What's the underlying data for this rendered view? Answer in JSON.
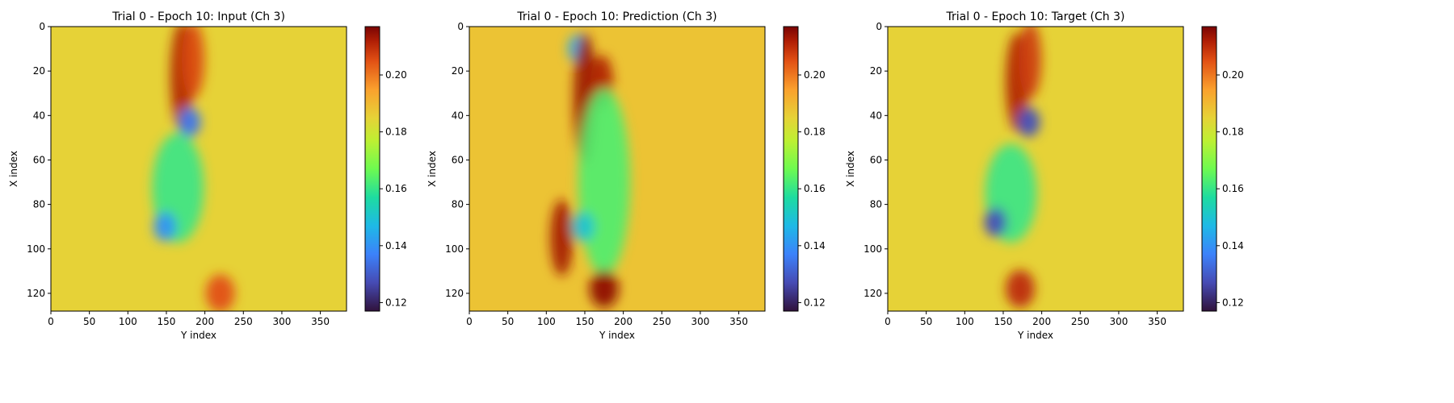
{
  "chart_data": [
    {
      "type": "heatmap",
      "title": "Trial 0 - Epoch 10: Input (Ch 3)",
      "xlabel": "Y index",
      "ylabel": "X index",
      "x_ticks": [
        0,
        50,
        100,
        150,
        200,
        250,
        300,
        350
      ],
      "y_ticks": [
        0,
        20,
        40,
        60,
        80,
        100,
        120
      ],
      "xlim": [
        0,
        384
      ],
      "ylim": [
        128,
        0
      ],
      "colormap": "turbo",
      "colorbar": {
        "range": [
          0.117,
          0.217
        ],
        "ticks": [
          "0.12",
          "0.14",
          "0.16",
          "0.18",
          "0.20"
        ]
      },
      "background_value": 0.185,
      "features": [
        {
          "kind": "warm-streak",
          "y_index": 170,
          "x_index_range": [
            0,
            45
          ],
          "value": 0.212
        },
        {
          "kind": "warm-streak",
          "y_index": 185,
          "x_index_range": [
            0,
            30
          ],
          "value": 0.206
        },
        {
          "kind": "warm-blob",
          "y_index": 220,
          "x_index": 120,
          "value": 0.205
        },
        {
          "kind": "cool-blob",
          "y_index": 180,
          "x_index": 43,
          "value": 0.135
        },
        {
          "kind": "cool-region",
          "y_index": 165,
          "x_index_range": [
            50,
            95
          ],
          "value": 0.16
        },
        {
          "kind": "cool-blob",
          "y_index": 148,
          "x_index": 90,
          "value": 0.14
        }
      ]
    },
    {
      "type": "heatmap",
      "title": "Trial 0 - Epoch 10: Prediction (Ch 3)",
      "xlabel": "Y index",
      "ylabel": "X index",
      "x_ticks": [
        0,
        50,
        100,
        150,
        200,
        250,
        300,
        350
      ],
      "y_ticks": [
        0,
        20,
        40,
        60,
        80,
        100,
        120
      ],
      "xlim": [
        0,
        384
      ],
      "ylim": [
        128,
        0
      ],
      "colormap": "turbo",
      "colorbar": {
        "range": [
          0.117,
          0.217
        ],
        "ticks": [
          "0.12",
          "0.14",
          "0.16",
          "0.18",
          "0.20"
        ]
      },
      "background_value": 0.188,
      "features": [
        {
          "kind": "cool-blob",
          "y_index": 143,
          "x_index": 10,
          "value": 0.145
        },
        {
          "kind": "warm-streak",
          "y_index": 150,
          "x_index_range": [
            5,
            60
          ],
          "value": 0.214
        },
        {
          "kind": "warm-streak",
          "y_index": 172,
          "x_index_range": [
            15,
            35
          ],
          "value": 0.212
        },
        {
          "kind": "cool-region",
          "y_index": 175,
          "x_index_range": [
            30,
            110
          ],
          "value": 0.163
        },
        {
          "kind": "cool-blob",
          "y_index": 148,
          "x_index": 90,
          "value": 0.15
        },
        {
          "kind": "warm-streak",
          "y_index": 120,
          "x_index_range": [
            80,
            110
          ],
          "value": 0.213
        },
        {
          "kind": "warm-blob",
          "y_index": 175,
          "x_index": 118,
          "value": 0.215
        }
      ]
    },
    {
      "type": "heatmap",
      "title": "Trial 0 - Epoch 10: Target (Ch 3)",
      "xlabel": "Y index",
      "ylabel": "X index",
      "x_ticks": [
        0,
        50,
        100,
        150,
        200,
        250,
        300,
        350
      ],
      "y_ticks": [
        0,
        20,
        40,
        60,
        80,
        100,
        120
      ],
      "xlim": [
        0,
        384
      ],
      "ylim": [
        128,
        0
      ],
      "colormap": "turbo",
      "colorbar": {
        "range": [
          0.117,
          0.217
        ],
        "ticks": [
          "0.12",
          "0.14",
          "0.16",
          "0.18",
          "0.20"
        ]
      },
      "background_value": 0.185,
      "features": [
        {
          "kind": "warm-streak",
          "y_index": 168,
          "x_index_range": [
            5,
            45
          ],
          "value": 0.212
        },
        {
          "kind": "warm-streak",
          "y_index": 185,
          "x_index_range": [
            0,
            30
          ],
          "value": 0.208
        },
        {
          "kind": "warm-blob",
          "y_index": 172,
          "x_index": 118,
          "value": 0.21
        },
        {
          "kind": "cool-blob",
          "y_index": 183,
          "x_index": 43,
          "value": 0.128
        },
        {
          "kind": "cool-region",
          "y_index": 160,
          "x_index_range": [
            55,
            95
          ],
          "value": 0.16
        },
        {
          "kind": "cool-blob",
          "y_index": 140,
          "x_index": 88,
          "value": 0.128
        }
      ]
    }
  ]
}
